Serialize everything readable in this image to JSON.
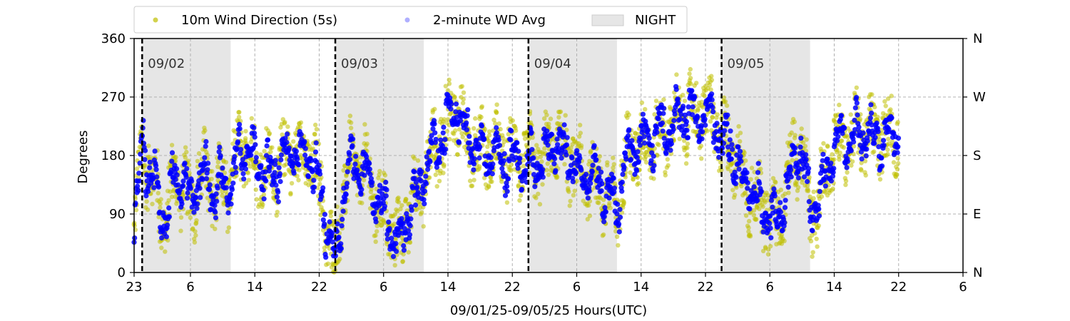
{
  "chart_data": {
    "type": "scatter",
    "xlabel": "09/01/25-09/05/25  Hours(UTC)",
    "ylabel": "Degrees",
    "ylim": [
      0,
      360
    ],
    "yticks": [
      0,
      90,
      180,
      270,
      360
    ],
    "right_ticks": [
      {
        "value": 0,
        "label": "N"
      },
      {
        "value": 90,
        "label": "E"
      },
      {
        "value": 180,
        "label": "S"
      },
      {
        "value": 270,
        "label": "W"
      },
      {
        "value": 360,
        "label": "N"
      }
    ],
    "x_range_hours": [
      0,
      103
    ],
    "x_ticks": [
      {
        "hour": 0,
        "label": "23"
      },
      {
        "hour": 7,
        "label": "6"
      },
      {
        "hour": 15,
        "label": "14"
      },
      {
        "hour": 23,
        "label": "22"
      },
      {
        "hour": 31,
        "label": "6"
      },
      {
        "hour": 39,
        "label": "14"
      },
      {
        "hour": 47,
        "label": "22"
      },
      {
        "hour": 55,
        "label": "6"
      },
      {
        "hour": 63,
        "label": "14"
      },
      {
        "hour": 71,
        "label": "22"
      },
      {
        "hour": 79,
        "label": "6"
      },
      {
        "hour": 87,
        "label": "14"
      },
      {
        "hour": 95,
        "label": "22"
      },
      {
        "hour": 103,
        "label": "6"
      }
    ],
    "grid": true,
    "legend_position": "top, outside plot",
    "day_markers": [
      {
        "hour": 1,
        "label": "09/02"
      },
      {
        "hour": 25,
        "label": "09/03"
      },
      {
        "hour": 49,
        "label": "09/04"
      },
      {
        "hour": 73,
        "label": "09/05"
      }
    ],
    "night_shading": [
      [
        1,
        12
      ],
      [
        25,
        36
      ],
      [
        49,
        60
      ],
      [
        73,
        84
      ]
    ],
    "series": [
      {
        "name": "10m Wind Direction (5s)",
        "color": "#bfbf00",
        "profile": [
          [
            0,
            60
          ],
          [
            1,
            200
          ],
          [
            2,
            150
          ],
          [
            3,
            120
          ],
          [
            4,
            70
          ],
          [
            5,
            160
          ],
          [
            6,
            130
          ],
          [
            7,
            110
          ],
          [
            8,
            140
          ],
          [
            9,
            150
          ],
          [
            10,
            120
          ],
          [
            11,
            140
          ],
          [
            12,
            130
          ],
          [
            13,
            190
          ],
          [
            14,
            190
          ],
          [
            15,
            170
          ],
          [
            16,
            160
          ],
          [
            17,
            150
          ],
          [
            18,
            170
          ],
          [
            19,
            180
          ],
          [
            20,
            190
          ],
          [
            21,
            180
          ],
          [
            22,
            175
          ],
          [
            23,
            140
          ],
          [
            24,
            60
          ],
          [
            25,
            20
          ],
          [
            26,
            120
          ],
          [
            27,
            170
          ],
          [
            28,
            160
          ],
          [
            29,
            150
          ],
          [
            30,
            110
          ],
          [
            31,
            90
          ],
          [
            32,
            70
          ],
          [
            33,
            50
          ],
          [
            34,
            90
          ],
          [
            35,
            120
          ],
          [
            36,
            150
          ],
          [
            37,
            180
          ],
          [
            38,
            200
          ],
          [
            39,
            230
          ],
          [
            40,
            260
          ],
          [
            41,
            210
          ],
          [
            42,
            200
          ],
          [
            43,
            190
          ],
          [
            44,
            190
          ],
          [
            45,
            185
          ],
          [
            46,
            175
          ],
          [
            47,
            180
          ],
          [
            48,
            175
          ],
          [
            49,
            170
          ],
          [
            50,
            170
          ],
          [
            51,
            170
          ],
          [
            52,
            200
          ],
          [
            53,
            190
          ],
          [
            54,
            180
          ],
          [
            55,
            160
          ],
          [
            56,
            150
          ],
          [
            57,
            150
          ],
          [
            58,
            130
          ],
          [
            59,
            110
          ],
          [
            60,
            100
          ],
          [
            61,
            170
          ],
          [
            62,
            190
          ],
          [
            63,
            200
          ],
          [
            64,
            200
          ],
          [
            65,
            210
          ],
          [
            66,
            215
          ],
          [
            67,
            230
          ],
          [
            68,
            240
          ],
          [
            69,
            245
          ],
          [
            70,
            240
          ],
          [
            71,
            250
          ],
          [
            72,
            230
          ],
          [
            73,
            210
          ],
          [
            74,
            200
          ],
          [
            75,
            170
          ],
          [
            76,
            130
          ],
          [
            77,
            120
          ],
          [
            78,
            100
          ],
          [
            79,
            90
          ],
          [
            80,
            80
          ],
          [
            81,
            130
          ],
          [
            82,
            180
          ],
          [
            83,
            190
          ],
          [
            84,
            80
          ],
          [
            85,
            110
          ],
          [
            86,
            150
          ],
          [
            87,
            200
          ],
          [
            88,
            205
          ],
          [
            89,
            210
          ],
          [
            90,
            215
          ],
          [
            91,
            215
          ],
          [
            92,
            210
          ],
          [
            93,
            210
          ],
          [
            94,
            212
          ],
          [
            95,
            210
          ]
        ]
      },
      {
        "name": "2-minute WD Avg",
        "color": "#0000ff"
      }
    ],
    "legend": {
      "items": [
        {
          "label": "10m Wind Direction (5s)",
          "marker": "dot",
          "color": "#bfbf00"
        },
        {
          "label": "2-minute WD Avg",
          "marker": "dot",
          "color": "#7a7aff"
        },
        {
          "label": "NIGHT",
          "marker": "patch",
          "color": "#e6e6e6"
        }
      ]
    }
  }
}
